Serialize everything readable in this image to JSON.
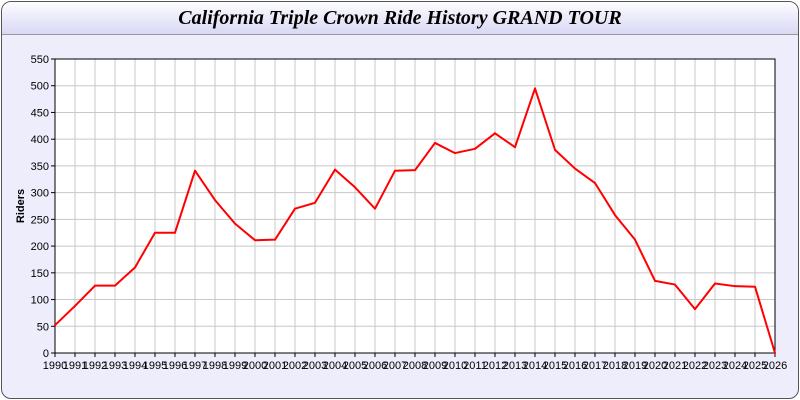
{
  "chart_data": {
    "type": "line",
    "title": "California Triple Crown Ride History GRAND TOUR",
    "xlabel": "",
    "ylabel": "Riders",
    "ylim": [
      0,
      550
    ],
    "yticks": [
      0,
      50,
      100,
      150,
      200,
      250,
      300,
      350,
      400,
      450,
      500,
      550
    ],
    "grid": true,
    "line_color": "#ff0000",
    "x": [
      1990,
      1991,
      1992,
      1993,
      1994,
      1995,
      1996,
      1997,
      1998,
      1999,
      2000,
      2001,
      2002,
      2003,
      2004,
      2005,
      2006,
      2007,
      2008,
      2009,
      2010,
      2011,
      2012,
      2013,
      2014,
      2015,
      2016,
      2017,
      2018,
      2019,
      2020,
      2021,
      2022,
      2023,
      2024,
      2025,
      2026
    ],
    "values": [
      52,
      88,
      126,
      126,
      160,
      225,
      225,
      341,
      286,
      242,
      211,
      212,
      270,
      281,
      343,
      310,
      270,
      341,
      342,
      393,
      374,
      382,
      411,
      385,
      495,
      380,
      345,
      318,
      258,
      212,
      135,
      128,
      82,
      130,
      125,
      124,
      0
    ]
  }
}
